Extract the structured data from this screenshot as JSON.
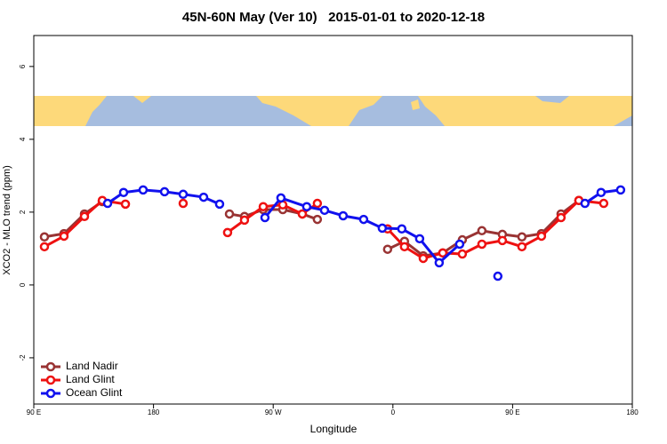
{
  "chart_data": {
    "type": "line",
    "title": "45N-60N May (Ver 10)   2015-01-01 to 2020-12-18",
    "x_label": "Longitude",
    "y_label": "XCO2 - MLO trend (ppm)",
    "xlim": [
      90,
      540
    ],
    "xticks": [
      {
        "value": 90,
        "label": "90 E"
      },
      180,
      {
        "value": 270,
        "label": "90 W"
      },
      {
        "value": 360,
        "label": "0"
      },
      {
        "value": 450,
        "label": "90 E"
      },
      {
        "value": 540,
        "label": "180"
      }
    ],
    "ylim": [
      -3.27,
      6.85
    ],
    "yticks": [
      -2,
      0,
      2,
      4,
      6
    ],
    "legend": "bottomleft",
    "series": [
      {
        "name": "Land Nadir",
        "color": "#993333",
        "x": [
          98.0,
          112.7,
          128.1,
          141.5,
          null,
          237.1,
          248.4,
          262.5,
          277.2,
          291.9,
          303.2,
          null,
          356.0,
          368.7,
          382.8,
          397.5,
          412.2,
          426.9,
          442.3,
          457.0,
          471.7,
          486.4,
          499.8
        ],
        "values": [
          1.32,
          1.41,
          1.95,
          2.29,
          null,
          1.95,
          1.88,
          2.07,
          2.07,
          1.95,
          1.8,
          null,
          0.98,
          1.2,
          0.8,
          0.88,
          1.24,
          1.49,
          1.39,
          1.32,
          1.41,
          1.95,
          2.32
        ]
      },
      {
        "name": "Land Glint",
        "color": "#ee1111",
        "x": [
          98.0,
          112.7,
          128.1,
          141.5,
          158.9,
          null,
          202.3,
          null,
          235.7,
          248.4,
          262.5,
          277.2,
          291.9,
          303.2,
          null,
          356.0,
          368.7,
          382.8,
          397.5,
          412.2,
          426.9,
          442.3,
          457.0,
          471.7,
          486.4,
          499.8,
          518.5
        ],
        "values": [
          1.05,
          1.34,
          1.88,
          2.32,
          2.22,
          null,
          2.24,
          null,
          1.44,
          1.78,
          2.15,
          2.2,
          1.95,
          2.24,
          null,
          1.54,
          1.05,
          0.73,
          0.88,
          0.85,
          1.12,
          1.22,
          1.05,
          1.34,
          1.85,
          2.32,
          2.24
        ]
      },
      {
        "name": "Ocean Glint",
        "color": "#1111ee",
        "x": [
          145.5,
          157.5,
          172.2,
          188.3,
          202.3,
          217.7,
          229.7,
          null,
          263.8,
          275.8,
          295.2,
          308.6,
          322.6,
          338.0,
          352.0,
          366.7,
          380.1,
          394.8,
          410.2,
          null,
          438.9,
          null,
          504.4,
          516.5,
          531.2
        ],
        "values": [
          2.24,
          2.54,
          2.61,
          2.56,
          2.49,
          2.41,
          2.22,
          null,
          1.85,
          2.39,
          2.15,
          2.05,
          1.9,
          1.8,
          1.56,
          1.54,
          1.27,
          0.61,
          1.12,
          null,
          0.24,
          null,
          2.24,
          2.54,
          2.61
        ]
      }
    ]
  }
}
